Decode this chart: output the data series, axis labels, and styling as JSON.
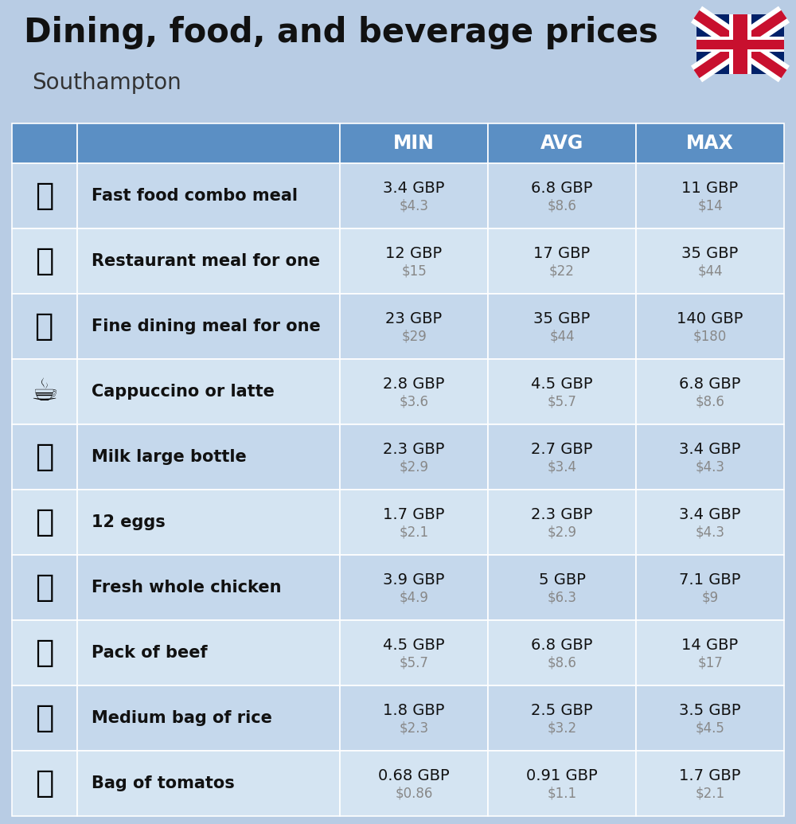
{
  "title": "Dining, food, and beverage prices",
  "subtitle": "Southampton",
  "background_color": "#b8cce4",
  "header_bg_color": "#5b8fc4",
  "header_text_color": "#ffffff",
  "row_colors": [
    "#c5d8ec",
    "#d4e4f2"
  ],
  "col_headers": [
    "MIN",
    "AVG",
    "MAX"
  ],
  "rows": [
    {
      "name": "Fast food combo meal",
      "emoji": "🍔",
      "min_gbp": "3.4 GBP",
      "min_usd": "$4.3",
      "avg_gbp": "6.8 GBP",
      "avg_usd": "$8.6",
      "max_gbp": "11 GBP",
      "max_usd": "$14"
    },
    {
      "name": "Restaurant meal for one",
      "emoji": "🍳",
      "min_gbp": "12 GBP",
      "min_usd": "$15",
      "avg_gbp": "17 GBP",
      "avg_usd": "$22",
      "max_gbp": "35 GBP",
      "max_usd": "$44"
    },
    {
      "name": "Fine dining meal for one",
      "emoji": "🍽️",
      "min_gbp": "23 GBP",
      "min_usd": "$29",
      "avg_gbp": "35 GBP",
      "avg_usd": "$44",
      "max_gbp": "140 GBP",
      "max_usd": "$180"
    },
    {
      "name": "Cappuccino or latte",
      "emoji": "☕",
      "min_gbp": "2.8 GBP",
      "min_usd": "$3.6",
      "avg_gbp": "4.5 GBP",
      "avg_usd": "$5.7",
      "max_gbp": "6.8 GBP",
      "max_usd": "$8.6"
    },
    {
      "name": "Milk large bottle",
      "emoji": "🥛",
      "min_gbp": "2.3 GBP",
      "min_usd": "$2.9",
      "avg_gbp": "2.7 GBP",
      "avg_usd": "$3.4",
      "max_gbp": "3.4 GBP",
      "max_usd": "$4.3"
    },
    {
      "name": "12 eggs",
      "emoji": "🥚",
      "min_gbp": "1.7 GBP",
      "min_usd": "$2.1",
      "avg_gbp": "2.3 GBP",
      "avg_usd": "$2.9",
      "max_gbp": "3.4 GBP",
      "max_usd": "$4.3"
    },
    {
      "name": "Fresh whole chicken",
      "emoji": "🐔",
      "min_gbp": "3.9 GBP",
      "min_usd": "$4.9",
      "avg_gbp": "5 GBP",
      "avg_usd": "$6.3",
      "max_gbp": "7.1 GBP",
      "max_usd": "$9"
    },
    {
      "name": "Pack of beef",
      "emoji": "🥩",
      "min_gbp": "4.5 GBP",
      "min_usd": "$5.7",
      "avg_gbp": "6.8 GBP",
      "avg_usd": "$8.6",
      "max_gbp": "14 GBP",
      "max_usd": "$17"
    },
    {
      "name": "Medium bag of rice",
      "emoji": "🍚",
      "min_gbp": "1.8 GBP",
      "min_usd": "$2.3",
      "avg_gbp": "2.5 GBP",
      "avg_usd": "$3.2",
      "max_gbp": "3.5 GBP",
      "max_usd": "$4.5"
    },
    {
      "name": "Bag of tomatos",
      "emoji": "🍅",
      "min_gbp": "0.68 GBP",
      "min_usd": "$0.86",
      "avg_gbp": "0.91 GBP",
      "avg_usd": "$1.1",
      "max_gbp": "1.7 GBP",
      "max_usd": "$2.1"
    }
  ]
}
